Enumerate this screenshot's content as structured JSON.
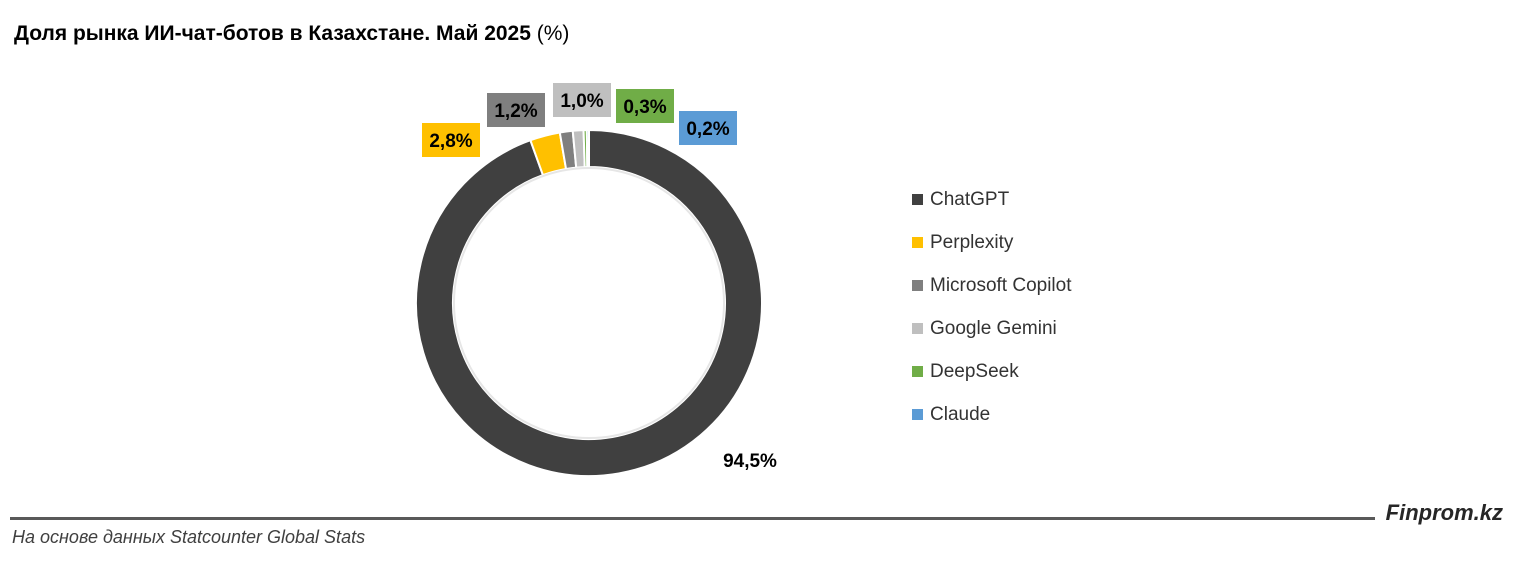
{
  "title": {
    "main": "Доля рынка ИИ-чат-ботов в Казахстане. Май 2025",
    "unit": "(%)"
  },
  "chart_data": {
    "type": "pie",
    "variant": "donut",
    "title": "Доля рынка ИИ-чат-ботов в Казахстане. Май 2025 (%)",
    "legend_position": "right",
    "series": [
      {
        "name": "ChatGPT",
        "value": 94.5,
        "label": "94,5%",
        "color": "#404040"
      },
      {
        "name": "Perplexity",
        "value": 2.8,
        "label": "2,8%",
        "color": "#FFC000"
      },
      {
        "name": "Microsoft Copilot",
        "value": 1.2,
        "label": "1,2%",
        "color": "#7F7F7F"
      },
      {
        "name": "Google Gemini",
        "value": 1.0,
        "label": "1,0%",
        "color": "#BFBFBF"
      },
      {
        "name": "DeepSeek",
        "value": 0.3,
        "label": "0,3%",
        "color": "#70AD47"
      },
      {
        "name": "Claude",
        "value": 0.2,
        "label": "0,2%",
        "color": "#5B9BD5"
      }
    ]
  },
  "footer": {
    "source": "На основе данных Statcounter Global Stats",
    "brand": "Finprom.kz"
  }
}
